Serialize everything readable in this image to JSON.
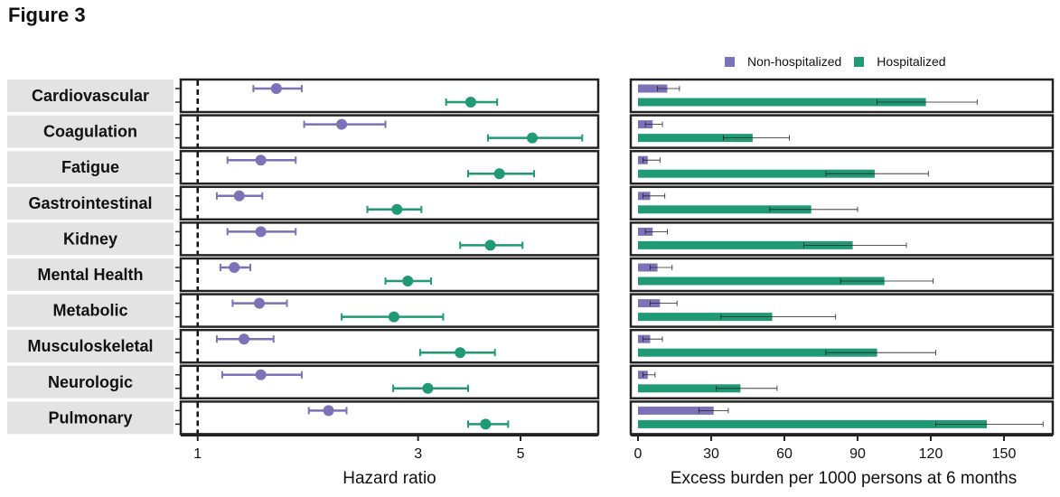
{
  "figure_title": "Figure 3",
  "colors": {
    "non_hospitalized": "#7b72b8",
    "hospitalized": "#1f9a74",
    "strip_bg": "#e3e3e3",
    "ref_line": "#111111"
  },
  "chart_data": [
    {
      "type": "scatter",
      "subtype": "forest-plot",
      "xlabel": "Hazard ratio",
      "xscale": "log",
      "xlim": [
        0.97,
        7.2
      ],
      "xticks": [
        1,
        3,
        5
      ],
      "reference_line": 1,
      "categories": [
        "Cardiovascular",
        "Coagulation",
        "Fatigue",
        "Gastrointestinal",
        "Kidney",
        "Mental Health",
        "Metabolic",
        "Musculoskeletal",
        "Neurologic",
        "Pulmonary"
      ],
      "series": [
        {
          "name": "Non-hospitalized",
          "points": [
            {
              "hr": 1.48,
              "lo": 1.32,
              "hi": 1.68
            },
            {
              "hr": 2.05,
              "lo": 1.7,
              "hi": 2.55
            },
            {
              "hr": 1.37,
              "lo": 1.16,
              "hi": 1.63
            },
            {
              "hr": 1.23,
              "lo": 1.1,
              "hi": 1.38
            },
            {
              "hr": 1.37,
              "lo": 1.16,
              "hi": 1.63
            },
            {
              "hr": 1.2,
              "lo": 1.12,
              "hi": 1.3
            },
            {
              "hr": 1.36,
              "lo": 1.19,
              "hi": 1.56
            },
            {
              "hr": 1.26,
              "lo": 1.1,
              "hi": 1.46
            },
            {
              "hr": 1.37,
              "lo": 1.13,
              "hi": 1.68
            },
            {
              "hr": 1.92,
              "lo": 1.74,
              "hi": 2.1
            }
          ]
        },
        {
          "name": "Hospitalized",
          "points": [
            {
              "hr": 3.9,
              "lo": 3.45,
              "hi": 4.45
            },
            {
              "hr": 5.3,
              "lo": 4.25,
              "hi": 6.8
            },
            {
              "hr": 4.5,
              "lo": 3.85,
              "hi": 5.35
            },
            {
              "hr": 2.7,
              "lo": 2.33,
              "hi": 3.05
            },
            {
              "hr": 4.3,
              "lo": 3.7,
              "hi": 5.05
            },
            {
              "hr": 2.85,
              "lo": 2.55,
              "hi": 3.2
            },
            {
              "hr": 2.66,
              "lo": 2.05,
              "hi": 3.4
            },
            {
              "hr": 3.7,
              "lo": 3.03,
              "hi": 4.4
            },
            {
              "hr": 3.15,
              "lo": 2.65,
              "hi": 3.85
            },
            {
              "hr": 4.2,
              "lo": 3.85,
              "hi": 4.7
            }
          ]
        }
      ]
    },
    {
      "type": "bar",
      "orientation": "horizontal",
      "xlabel": "Excess burden per 1000 persons at 6 months",
      "xlim": [
        0,
        170
      ],
      "xticks": [
        0,
        30,
        60,
        90,
        120,
        150
      ],
      "legend_position": "top",
      "categories": [
        "Cardiovascular",
        "Coagulation",
        "Fatigue",
        "Gastrointestinal",
        "Kidney",
        "Mental Health",
        "Metabolic",
        "Musculoskeletal",
        "Neurologic",
        "Pulmonary"
      ],
      "series": [
        {
          "name": "Non-hospitalized",
          "values": [
            12,
            6,
            4,
            5,
            6,
            8,
            9,
            5,
            4,
            31
          ],
          "ci_low": [
            8,
            3,
            2,
            2,
            3,
            5,
            5,
            2,
            2,
            25
          ],
          "ci_high": [
            17,
            10,
            9,
            11,
            12,
            14,
            16,
            10,
            7,
            37
          ]
        },
        {
          "name": "Hospitalized",
          "values": [
            118,
            47,
            97,
            71,
            88,
            101,
            55,
            98,
            42,
            143
          ],
          "ci_low": [
            98,
            35,
            77,
            54,
            68,
            83,
            34,
            77,
            32,
            122
          ],
          "ci_high": [
            139,
            62,
            119,
            90,
            110,
            121,
            81,
            122,
            57,
            166
          ]
        }
      ]
    }
  ]
}
